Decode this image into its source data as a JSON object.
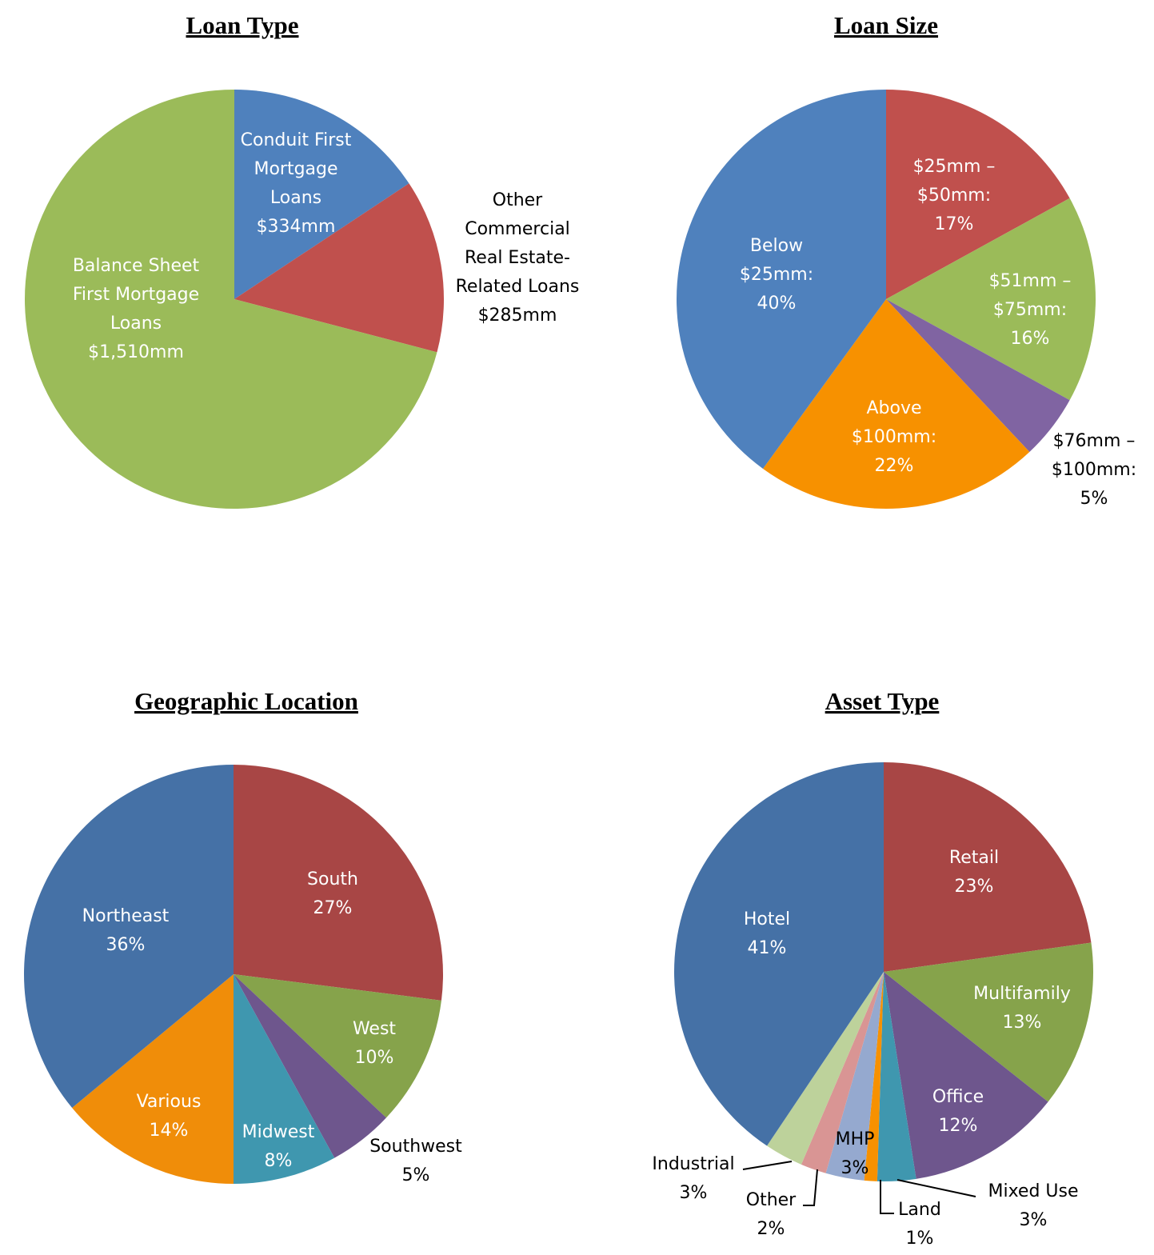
{
  "chart_data": [
    {
      "type": "pie",
      "title": "Loan Type",
      "slices": [
        {
          "label": [
            "Conduit First",
            "Mortgage",
            "Loans",
            "$334mm"
          ],
          "value": 334,
          "color": "#4F81BD"
        },
        {
          "label": [
            "Other",
            "Commercial",
            "Real Estate-",
            "Related Loans",
            "$285mm"
          ],
          "value": 285,
          "color": "#C0504D"
        },
        {
          "label": [
            "Balance Sheet",
            "First Mortgage",
            "Loans",
            "$1,510mm"
          ],
          "value": 1510,
          "color": "#9BBB59"
        }
      ]
    },
    {
      "type": "pie",
      "title": "Loan Size",
      "slices": [
        {
          "label": [
            "$25mm –",
            "$50mm:",
            "17%"
          ],
          "value": 17,
          "color": "#C0504D"
        },
        {
          "label": [
            "$51mm –",
            "$75mm:",
            "16%"
          ],
          "value": 16,
          "color": "#9BBB59"
        },
        {
          "label": [
            "$76mm –",
            "$100mm:",
            "5%"
          ],
          "value": 5,
          "color": "#8064A2"
        },
        {
          "label": [
            "Above",
            "$100mm:",
            "22%"
          ],
          "value": 22,
          "color": "#F79100"
        },
        {
          "label": [
            "Below",
            "$25mm:",
            "40%"
          ],
          "value": 40,
          "color": "#4F81BD"
        }
      ]
    },
    {
      "type": "pie",
      "title": "Geographic Location",
      "slices": [
        {
          "label": [
            "South",
            "27%"
          ],
          "value": 27,
          "color": "#A84645"
        },
        {
          "label": [
            "West",
            "10%"
          ],
          "value": 10,
          "color": "#86A34B"
        },
        {
          "label": [
            "Southwest",
            "5%"
          ],
          "value": 5,
          "color": "#6E568D"
        },
        {
          "label": [
            "Midwest",
            "8%"
          ],
          "value": 8,
          "color": "#3F97AF"
        },
        {
          "label": [
            "Various",
            "14%"
          ],
          "value": 14,
          "color": "#F08D09"
        },
        {
          "label": [
            "Northeast",
            "36%"
          ],
          "value": 36,
          "color": "#4571A6"
        }
      ]
    },
    {
      "type": "pie",
      "title": "Asset Type",
      "slices": [
        {
          "label": [
            "Retail",
            "23%"
          ],
          "value": 23,
          "color": "#A84645"
        },
        {
          "label": [
            "Multifamily",
            "13%"
          ],
          "value": 13,
          "color": "#86A34B"
        },
        {
          "label": [
            "Office",
            "12%"
          ],
          "value": 12,
          "color": "#6E568D"
        },
        {
          "label": [
            "Mixed Use",
            "3%"
          ],
          "value": 3,
          "color": "#3F97AF"
        },
        {
          "label": [
            "Land",
            "1%"
          ],
          "value": 1,
          "color": "#F79100"
        },
        {
          "label": [
            "MHP",
            "3%"
          ],
          "value": 3,
          "color": "#95A9CF"
        },
        {
          "label": [
            "Other",
            "2%"
          ],
          "value": 2,
          "color": "#D99594"
        },
        {
          "label": [
            "Industrial",
            "3%"
          ],
          "value": 3,
          "color": "#BDD29B"
        },
        {
          "label": [
            "Hotel",
            "41%"
          ],
          "value": 41,
          "color": "#4571A6"
        }
      ]
    }
  ]
}
